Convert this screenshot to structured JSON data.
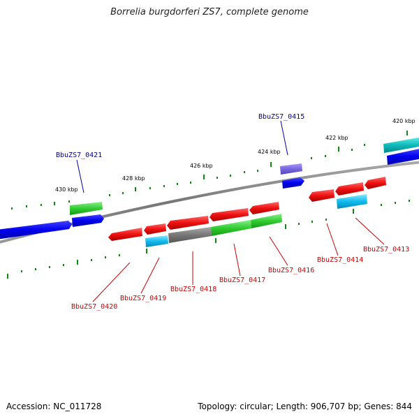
{
  "title": "Borrelia burgdorferi ZS7, complete genome",
  "footer": {
    "accession": "Accession: NC_011728",
    "summary": "Topology: circular; Length: 906,707 bp; Genes: 844"
  },
  "ticks": [
    "430 kbp",
    "428 kbp",
    "426 kbp",
    "424 kbp",
    "422 kbp",
    "420 kbp"
  ],
  "gene_labels": {
    "top": [
      "BbuZS7_0421",
      "BbuZS7_0415"
    ],
    "bottom": [
      "BbuZS7_0420",
      "BbuZS7_0419",
      "BbuZS7_0418",
      "BbuZS7_0417",
      "BbuZS7_0416",
      "BbuZS7_0414",
      "BbuZS7_0413"
    ]
  },
  "colors": {
    "blue": "#0000ee",
    "green": "#33cc33",
    "red": "#ee1111",
    "cyan": "#11bbee",
    "gray": "#777777",
    "purple": "#7766dd",
    "teal": "#11bbbb",
    "label_blue": "#000088",
    "label_red": "#cc0000"
  }
}
